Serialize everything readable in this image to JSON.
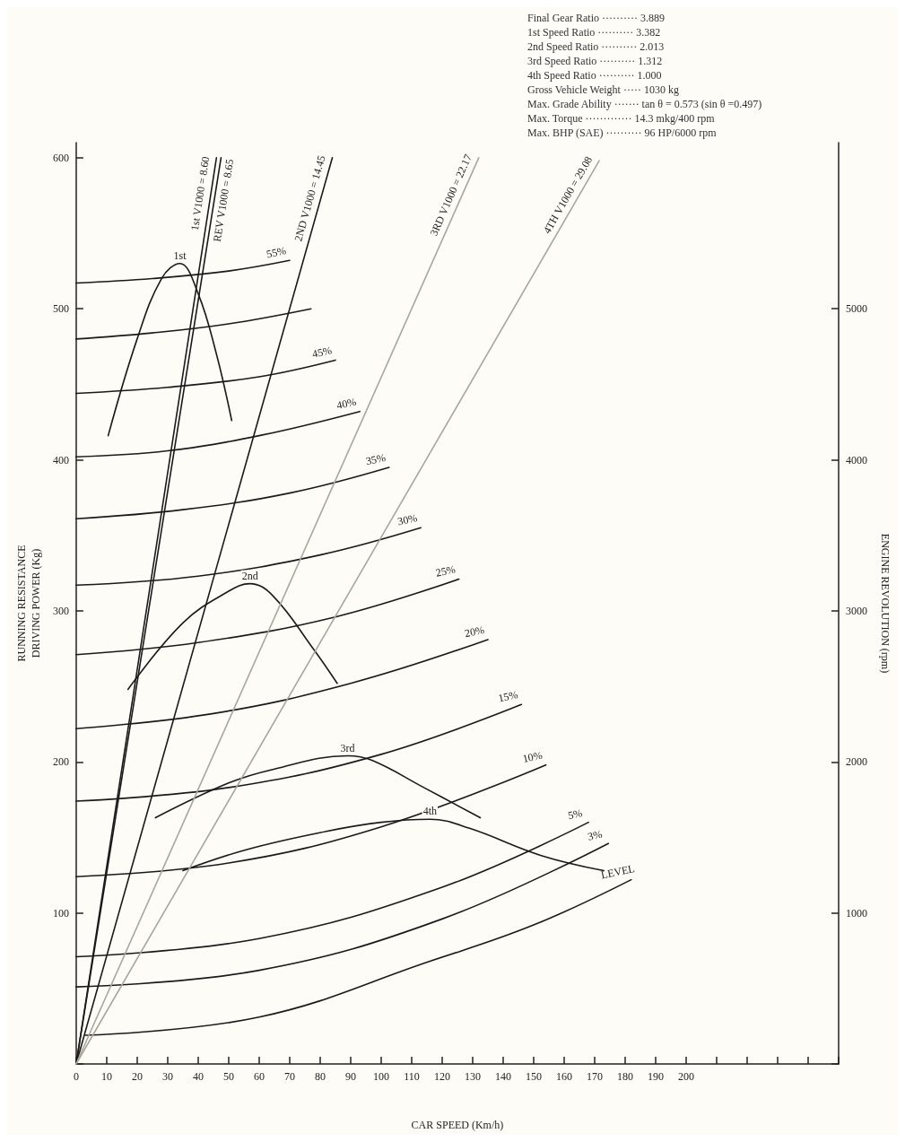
{
  "chart_data": {
    "type": "line",
    "xlabel": "CAR SPEED (Km/h)",
    "ylabel": "RUNNING RESISTANCE\nDRIVING POWER (Kg)",
    "y2label": "ENGINE REVOLUTION (rpm)",
    "xlim": [
      0,
      250
    ],
    "ylim": [
      0,
      610
    ],
    "y2lim": [
      0,
      6100
    ],
    "xticks": [
      0,
      10,
      20,
      30,
      40,
      50,
      60,
      70,
      80,
      90,
      100,
      110,
      120,
      130,
      140,
      150,
      160,
      170,
      180,
      190,
      200,
      {
        "value": 210,
        "label": null
      },
      {
        "value": 220,
        "label": null
      },
      {
        "value": 230,
        "label": null
      },
      {
        "value": 240,
        "label": null
      },
      {
        "value": 250,
        "label": null
      }
    ],
    "yticks": [
      {
        "value": 0,
        "label": null
      },
      100,
      200,
      300,
      400,
      500,
      600
    ],
    "y2ticks": [
      {
        "value": 0,
        "label": null
      },
      1000,
      2000,
      3000,
      4000,
      5000
    ],
    "grid": false,
    "legend": false,
    "marker": "none",
    "line_style": "solid",
    "annotations": [
      "Final Gear Ratio ·········· 3.889",
      "1st Speed Ratio ·········· 3.382",
      "2nd Speed Ratio ·········· 2.013",
      "3rd Speed Ratio ·········· 1.312",
      "4th Speed Ratio ·········· 1.000",
      "Gross Vehicle Weight ····· 1030 kg",
      "Max. Grade Ability ······· tan θ = 0.573 (sin θ =0.497)",
      "Max. Torque ············· 14.3 mkg/400 rpm",
      "Max. BHP (SAE) ·········· 96 HP/6000 rpm"
    ],
    "series": [
      {
        "name": "LEVEL",
        "color": "#1a1a1a",
        "x": [
          3,
          60,
          116,
          150,
          182
        ],
        "values": [
          19,
          31,
          68,
          92,
          122
        ]
      },
      {
        "name": "3%",
        "color": "#1a1a1a",
        "x": [
          0,
          60,
          120,
          174.5
        ],
        "values": [
          51,
          62,
          96,
          146
        ]
      },
      {
        "name": "5%",
        "color": "#1a1a1a",
        "x": [
          0,
          60,
          120,
          168
        ],
        "values": [
          71,
          83,
          117,
          160
        ]
      },
      {
        "name": "10%",
        "color": "#1a1a1a",
        "x": [
          0,
          50,
          100,
          154
        ],
        "values": [
          124,
          133,
          157,
          198
        ]
      },
      {
        "name": "15%",
        "color": "#1a1a1a",
        "x": [
          0,
          50,
          100,
          146
        ],
        "values": [
          174,
          183,
          205,
          238
        ]
      },
      {
        "name": "20%",
        "color": "#1a1a1a",
        "x": [
          0,
          45,
          90,
          135
        ],
        "values": [
          222,
          232,
          252,
          281
        ]
      },
      {
        "name": "25%",
        "color": "#1a1a1a",
        "x": [
          0,
          40,
          85,
          125.5
        ],
        "values": [
          271,
          279,
          296,
          321
        ]
      },
      {
        "name": "30%",
        "color": "#1a1a1a",
        "x": [
          0,
          40,
          80,
          113
        ],
        "values": [
          317,
          323,
          337,
          355
        ]
      },
      {
        "name": "35%",
        "color": "#1a1a1a",
        "x": [
          0,
          35,
          70,
          102.6
        ],
        "values": [
          361,
          367,
          378,
          395
        ]
      },
      {
        "name": "40%",
        "color": "#1a1a1a",
        "x": [
          0,
          30,
          60,
          93
        ],
        "values": [
          402,
          406,
          416,
          432
        ]
      },
      {
        "name": "45%",
        "color": "#1a1a1a",
        "x": [
          0,
          30,
          60,
          85
        ],
        "values": [
          444,
          448,
          455,
          466
        ]
      },
      {
        "color": "#1a1a1a",
        "x": [
          0,
          25,
          50,
          77
        ],
        "values": [
          480,
          484,
          490,
          500
        ]
      },
      {
        "name": "55%",
        "color": "#1a1a1a",
        "x": [
          0,
          25,
          50,
          70
        ],
        "values": [
          517,
          520,
          525,
          532
        ]
      },
      {
        "name": "1st",
        "color": "#1a1a1a",
        "x": [
          10.5,
          20,
          28,
          34,
          40,
          46,
          51
        ],
        "values": [
          416,
          480,
          520,
          530,
          510,
          470,
          426
        ]
      },
      {
        "name": "2nd",
        "color": "#1a1a1a",
        "x": [
          17,
          35,
          50,
          57,
          64.5,
          77.7,
          85.6
        ],
        "values": [
          248,
          292,
          313,
          318,
          310,
          275,
          252
        ]
      },
      {
        "name": "3rd",
        "color": "#1a1a1a",
        "x": [
          26,
          50,
          64.5,
          89,
          97,
          114,
          132.5
        ],
        "values": [
          163,
          186,
          195,
          204,
          201,
          183,
          163
        ]
      },
      {
        "name": "4th",
        "color": "#1a1a1a",
        "x": [
          35,
          56,
          82,
          100,
          116,
          129,
          152.5,
          173
        ],
        "values": [
          128,
          142,
          154,
          160,
          162,
          156,
          138,
          128
        ]
      },
      {
        "name": "1st V1000 = 8.60",
        "color": "#1a1a1a",
        "axis": "y2",
        "x": [
          0,
          46
        ],
        "values": [
          0,
          6000
        ]
      },
      {
        "name": "REV V1000 = 8.65",
        "color": "#1a1a1a",
        "axis": "y2",
        "x": [
          0,
          47.5
        ],
        "values": [
          0,
          6000
        ]
      },
      {
        "name": "2ND V1000 = 14.45",
        "color": "#1a1a1a",
        "axis": "y2",
        "x": [
          0,
          84
        ],
        "values": [
          0,
          6000
        ]
      },
      {
        "name": "3RD V1000 = 22.17",
        "color": "#aaa69e",
        "axis": "y2",
        "x": [
          0,
          132
        ],
        "values": [
          0,
          6000
        ]
      },
      {
        "name": "4TH V1000 = 29.08",
        "color": "#aaa69e",
        "axis": "y2",
        "x": [
          0,
          171.5
        ],
        "values": [
          0,
          5980
        ]
      }
    ]
  }
}
